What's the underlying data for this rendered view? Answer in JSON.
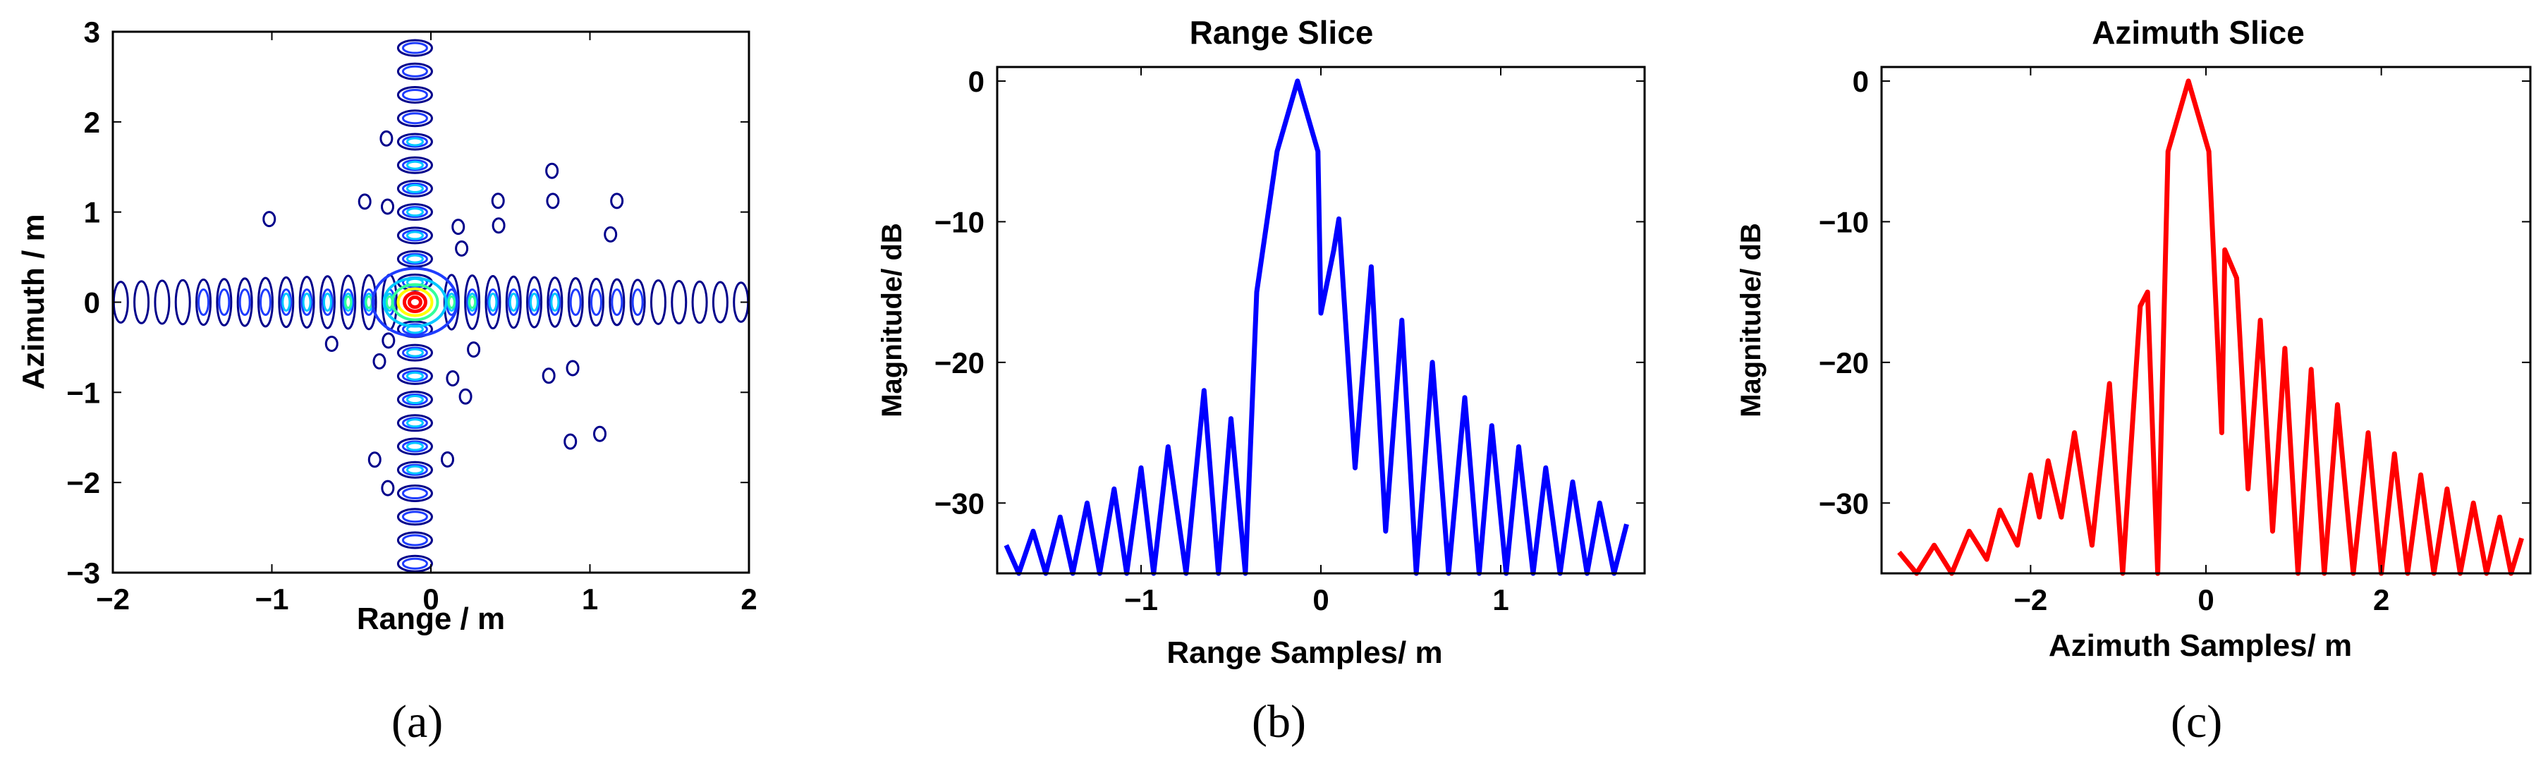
{
  "figure": {
    "panels": [
      {
        "caption": "(a)"
      },
      {
        "caption": "(b)"
      },
      {
        "caption": "(c)"
      }
    ]
  },
  "chart_data": [
    {
      "type": "heatmap",
      "title": "",
      "xlabel": "Range / m",
      "ylabel": "Azimuth / m",
      "xlim": [
        -2,
        2
      ],
      "ylim": [
        -3,
        3
      ],
      "xticks": [
        -2,
        -1,
        0,
        1,
        2
      ],
      "yticks": [
        3,
        2,
        1,
        0,
        -1,
        -2,
        -3
      ],
      "description": "contour plot of point target impulse response centred near (-0.1, 0)",
      "peak": {
        "x": -0.1,
        "y": 0
      },
      "colormap": [
        "#00008b",
        "#1e3cff",
        "#00c8ff",
        "#33ff99",
        "#ffff00",
        "#ff0000"
      ]
    },
    {
      "type": "line",
      "title": "Range Slice",
      "xlabel": "Range Samples/ m",
      "ylabel": "Magnitude/ dB",
      "xlim": [
        -1.8,
        1.8
      ],
      "ylim": [
        -35,
        1
      ],
      "xticks": [
        -1,
        0,
        1
      ],
      "yticks": [
        0,
        -10,
        -20,
        -30
      ],
      "series": [
        {
          "name": "range",
          "color": "#0000ff",
          "mainlobe_center": -0.13,
          "peak": 0,
          "sidelobes": [
            [
              -1.75,
              -33
            ],
            [
              -1.6,
              -32
            ],
            [
              -1.45,
              -31
            ],
            [
              -1.3,
              -30
            ],
            [
              -1.15,
              -29
            ],
            [
              -1.0,
              -27.5
            ],
            [
              -0.85,
              -26
            ],
            [
              -0.65,
              -22
            ],
            [
              -0.5,
              -24
            ],
            [
              0.1,
              -9.8
            ],
            [
              0.28,
              -13.2
            ],
            [
              0.45,
              -17
            ],
            [
              0.62,
              -20
            ],
            [
              0.8,
              -22.5
            ],
            [
              0.95,
              -24.5
            ],
            [
              1.1,
              -26
            ],
            [
              1.25,
              -27.5
            ],
            [
              1.4,
              -28.5
            ],
            [
              1.55,
              -30
            ],
            [
              1.7,
              -31.5
            ]
          ],
          "nulls": [
            [
              -1.68,
              -35
            ],
            [
              -1.53,
              -35
            ],
            [
              -1.38,
              -35
            ],
            [
              -1.23,
              -35
            ],
            [
              -1.08,
              -35
            ],
            [
              -0.93,
              -35
            ],
            [
              -0.75,
              -35
            ],
            [
              -0.57,
              -35
            ],
            [
              -0.42,
              -35
            ],
            [
              0.0,
              -16.5
            ],
            [
              0.19,
              -27.5
            ],
            [
              0.36,
              -32
            ],
            [
              0.53,
              -35
            ],
            [
              0.71,
              -35
            ],
            [
              0.88,
              -35
            ],
            [
              1.03,
              -35
            ],
            [
              1.18,
              -35
            ],
            [
              1.33,
              -35
            ],
            [
              1.48,
              -35
            ],
            [
              1.63,
              -35
            ]
          ]
        }
      ]
    },
    {
      "type": "line",
      "title": "Azimuth Slice",
      "xlabel": "Azimuth Samples/ m",
      "ylabel": "Magnitude/ dB",
      "xlim": [
        -3.7,
        3.7
      ],
      "ylim": [
        -35,
        1
      ],
      "xticks": [
        -2,
        0,
        2
      ],
      "yticks": [
        0,
        -10,
        -20,
        -30
      ],
      "series": [
        {
          "name": "azimuth",
          "color": "#ff0000",
          "mainlobe_center": -0.2,
          "peak": 0,
          "sidelobes": [
            [
              -3.5,
              -33.5
            ],
            [
              -3.1,
              -33
            ],
            [
              -2.7,
              -32
            ],
            [
              -2.35,
              -30.5
            ],
            [
              -2.0,
              -28
            ],
            [
              -1.8,
              -27
            ],
            [
              -1.5,
              -25
            ],
            [
              -1.1,
              -21.5
            ],
            [
              -0.75,
              -16
            ],
            [
              0.35,
              -14
            ],
            [
              0.62,
              -17
            ],
            [
              0.9,
              -19
            ],
            [
              1.2,
              -20.5
            ],
            [
              1.5,
              -23
            ],
            [
              1.85,
              -25
            ],
            [
              2.15,
              -26.5
            ],
            [
              2.45,
              -28
            ],
            [
              2.75,
              -29
            ],
            [
              3.05,
              -30
            ],
            [
              3.35,
              -31
            ],
            [
              3.6,
              -32.5
            ]
          ],
          "nulls": [
            [
              -3.3,
              -35
            ],
            [
              -2.9,
              -35
            ],
            [
              -2.5,
              -34
            ],
            [
              -2.15,
              -33
            ],
            [
              -1.9,
              -31
            ],
            [
              -1.65,
              -31
            ],
            [
              -1.3,
              -33
            ],
            [
              -0.95,
              -35
            ],
            [
              -0.55,
              -35
            ],
            [
              0.18,
              -25
            ],
            [
              0.48,
              -29
            ],
            [
              0.76,
              -32
            ],
            [
              1.05,
              -35
            ],
            [
              1.35,
              -35
            ],
            [
              1.68,
              -35
            ],
            [
              2.0,
              -35
            ],
            [
              2.3,
              -35
            ],
            [
              2.6,
              -35
            ],
            [
              2.9,
              -35
            ],
            [
              3.2,
              -35
            ],
            [
              3.48,
              -35
            ]
          ]
        }
      ]
    }
  ]
}
